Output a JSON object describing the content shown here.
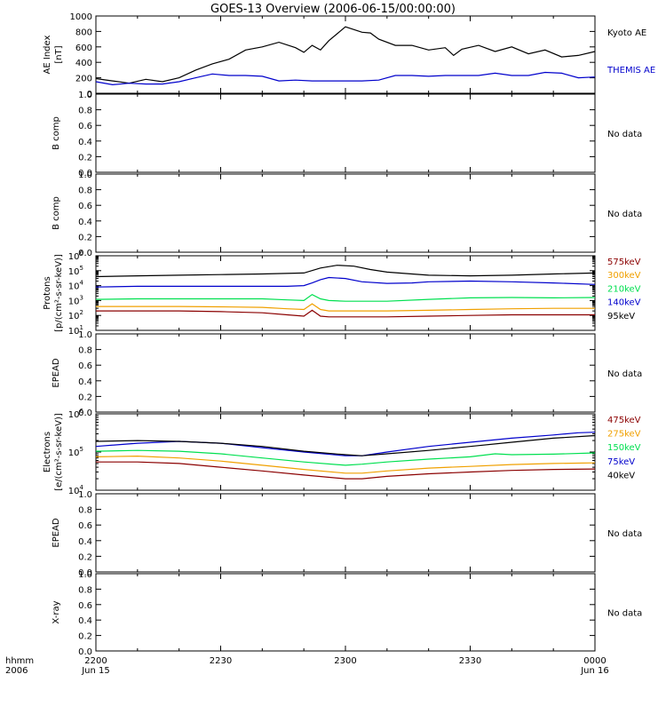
{
  "title": "GOES-13 Overview (2006-06-15/00:00:00)",
  "colors": {
    "black": "#000000",
    "blue": "#0000cc",
    "green": "#00e050",
    "orange": "#f0a000",
    "darkred": "#8b0000"
  },
  "chart_data": [
    {
      "id": "ae",
      "type": "line",
      "ylabel": [
        "AE Index",
        "[nT]"
      ],
      "ylim": [
        0,
        1000
      ],
      "yticks": [
        0,
        200,
        400,
        600,
        800,
        1000
      ],
      "series": [
        {
          "name": "Kyoto AE",
          "color": "#000000",
          "x": [
            0,
            2,
            4,
            6,
            8,
            10,
            12,
            14,
            16,
            18,
            20,
            22,
            24,
            25,
            26,
            27,
            28,
            30,
            32,
            33,
            34,
            36,
            38,
            40,
            42,
            43,
            44,
            46,
            48,
            50,
            52,
            54,
            56,
            58,
            60
          ],
          "y": [
            190,
            160,
            130,
            180,
            150,
            200,
            300,
            380,
            440,
            560,
            600,
            660,
            590,
            530,
            620,
            560,
            680,
            860,
            790,
            780,
            700,
            620,
            620,
            560,
            590,
            490,
            570,
            620,
            540,
            600,
            510,
            560,
            470,
            490,
            540
          ]
        },
        {
          "name": "THEMIS AE",
          "color": "#0000cc",
          "x": [
            0,
            2,
            4,
            6,
            8,
            10,
            12,
            14,
            16,
            18,
            20,
            22,
            24,
            26,
            28,
            30,
            32,
            34,
            36,
            38,
            40,
            42,
            44,
            46,
            48,
            50,
            52,
            54,
            56,
            58,
            60
          ],
          "y": [
            150,
            110,
            130,
            120,
            120,
            150,
            200,
            250,
            230,
            230,
            220,
            160,
            170,
            160,
            160,
            160,
            160,
            170,
            230,
            230,
            220,
            230,
            230,
            230,
            260,
            230,
            230,
            270,
            260,
            200,
            210
          ]
        }
      ]
    },
    {
      "id": "bcomp1",
      "type": "line",
      "ylabel": [
        "B comp"
      ],
      "ylim": [
        0,
        1
      ],
      "yticks": [
        0,
        0.2,
        0.4,
        0.6,
        0.8,
        1
      ],
      "series": [],
      "note": "No data"
    },
    {
      "id": "bcomp2",
      "type": "line",
      "ylabel": [
        "B comp"
      ],
      "ylim": [
        0,
        1
      ],
      "yticks": [
        0,
        0.2,
        0.4,
        0.6,
        0.8,
        1
      ],
      "series": [],
      "note": "No data"
    },
    {
      "id": "protons",
      "type": "line",
      "log": true,
      "ylabel": [
        "Protons",
        "[p/(cm²-s-sr-keV)]"
      ],
      "ylim": [
        10,
        1000000
      ],
      "ytick_exps": [
        1,
        2,
        3,
        4,
        5,
        6
      ],
      "series": [
        {
          "name": "575keV",
          "color": "#8b0000",
          "x": [
            0,
            5,
            10,
            15,
            20,
            23,
            25,
            26,
            27,
            28,
            30,
            35,
            40,
            45,
            50,
            55,
            60
          ],
          "y": [
            200,
            200,
            200,
            180,
            150,
            110,
            90,
            220,
            90,
            80,
            80,
            80,
            90,
            100,
            110,
            110,
            110
          ]
        },
        {
          "name": "300keV",
          "color": "#f0a000",
          "x": [
            0,
            5,
            10,
            15,
            20,
            23,
            25,
            26,
            27,
            28,
            30,
            35,
            40,
            45,
            50,
            55,
            60
          ],
          "y": [
            400,
            400,
            400,
            380,
            350,
            280,
            250,
            600,
            250,
            200,
            200,
            200,
            220,
            250,
            280,
            300,
            300
          ]
        },
        {
          "name": "210keV",
          "color": "#00e050",
          "x": [
            0,
            5,
            10,
            15,
            20,
            23,
            25,
            26,
            27,
            28,
            30,
            35,
            40,
            45,
            50,
            55,
            60
          ],
          "y": [
            1200,
            1300,
            1300,
            1300,
            1300,
            1100,
            1000,
            2500,
            1300,
            1000,
            900,
            900,
            1200,
            1500,
            1600,
            1500,
            1600
          ]
        },
        {
          "name": "140keV",
          "color": "#0000cc",
          "x": [
            0,
            5,
            10,
            15,
            20,
            23,
            25,
            26,
            27,
            28,
            30,
            32,
            35,
            38,
            40,
            45,
            50,
            55,
            60
          ],
          "y": [
            8000,
            9000,
            9000,
            9000,
            9000,
            9000,
            10000,
            15000,
            25000,
            35000,
            30000,
            18000,
            14000,
            15000,
            18000,
            20000,
            18000,
            15000,
            12000
          ]
        },
        {
          "name": "95keV",
          "color": "#000000",
          "x": [
            0,
            5,
            10,
            15,
            20,
            25,
            27,
            29,
            31,
            33,
            35,
            38,
            40,
            45,
            50,
            55,
            60
          ],
          "y": [
            40000,
            45000,
            50000,
            55000,
            60000,
            70000,
            150000,
            230000,
            200000,
            120000,
            80000,
            60000,
            50000,
            45000,
            50000,
            60000,
            70000
          ]
        }
      ]
    },
    {
      "id": "epead1",
      "type": "line",
      "ylabel": [
        "EPEAD"
      ],
      "ylim": [
        0,
        1
      ],
      "yticks": [
        0,
        0.2,
        0.4,
        0.6,
        0.8,
        1
      ],
      "series": [],
      "note": "No data"
    },
    {
      "id": "electrons",
      "type": "line",
      "log": true,
      "ylabel": [
        "Electrons",
        "[e/(cm²-s-sr-keV)]"
      ],
      "ylim": [
        10000,
        1000000
      ],
      "ytick_exps": [
        4,
        5,
        6
      ],
      "series": [
        {
          "name": "475keV",
          "color": "#8b0000",
          "x": [
            0,
            5,
            10,
            15,
            20,
            25,
            30,
            32,
            35,
            40,
            45,
            50,
            55,
            60
          ],
          "y": [
            55000,
            55000,
            50000,
            40000,
            32000,
            25000,
            20000,
            20000,
            23000,
            27000,
            30000,
            33000,
            35000,
            36000
          ]
        },
        {
          "name": "275keV",
          "color": "#f0a000",
          "x": [
            0,
            5,
            10,
            15,
            20,
            25,
            30,
            32,
            35,
            40,
            45,
            50,
            55,
            60
          ],
          "y": [
            75000,
            78000,
            70000,
            58000,
            45000,
            35000,
            28000,
            28000,
            32000,
            38000,
            42000,
            47000,
            50000,
            52000
          ]
        },
        {
          "name": "150keV",
          "color": "#00e050",
          "x": [
            0,
            5,
            10,
            15,
            20,
            25,
            30,
            32,
            35,
            40,
            45,
            48,
            50,
            55,
            60
          ],
          "y": [
            105000,
            110000,
            105000,
            90000,
            70000,
            55000,
            45000,
            48000,
            55000,
            65000,
            75000,
            90000,
            85000,
            88000,
            95000
          ]
        },
        {
          "name": "75keV",
          "color": "#0000cc",
          "x": [
            0,
            5,
            10,
            15,
            20,
            25,
            30,
            32,
            35,
            40,
            45,
            50,
            55,
            58,
            60
          ],
          "y": [
            140000,
            170000,
            190000,
            170000,
            130000,
            100000,
            80000,
            80000,
            100000,
            140000,
            180000,
            230000,
            280000,
            320000,
            330000
          ]
        },
        {
          "name": "40keV",
          "color": "#000000",
          "x": [
            0,
            5,
            10,
            15,
            20,
            25,
            30,
            32,
            35,
            40,
            45,
            50,
            55,
            60
          ],
          "y": [
            190000,
            200000,
            190000,
            170000,
            140000,
            105000,
            85000,
            80000,
            90000,
            110000,
            140000,
            180000,
            230000,
            270000
          ]
        }
      ]
    },
    {
      "id": "epead2",
      "type": "line",
      "ylabel": [
        "EPEAD"
      ],
      "ylim": [
        0,
        1
      ],
      "yticks": [
        0,
        0.2,
        0.4,
        0.6,
        0.8,
        1
      ],
      "series": [],
      "note": "No data"
    },
    {
      "id": "xray",
      "type": "line",
      "ylabel": [
        "X-ray"
      ],
      "ylim": [
        0,
        1
      ],
      "yticks": [
        0,
        0.2,
        0.4,
        0.6,
        0.8,
        1
      ],
      "series": [],
      "note": "No data"
    }
  ],
  "xaxis": {
    "xlim": [
      0,
      60
    ],
    "row_labels": [
      "hhmm",
      "2006"
    ],
    "ticks": [
      {
        "x": 0,
        "line1": "2200",
        "line2": "Jun 15"
      },
      {
        "x": 15,
        "line1": "2230",
        "line2": ""
      },
      {
        "x": 30,
        "line1": "2300",
        "line2": ""
      },
      {
        "x": 45,
        "line1": "2330",
        "line2": ""
      },
      {
        "x": 60,
        "line1": "0000",
        "line2": "Jun 16"
      }
    ]
  }
}
